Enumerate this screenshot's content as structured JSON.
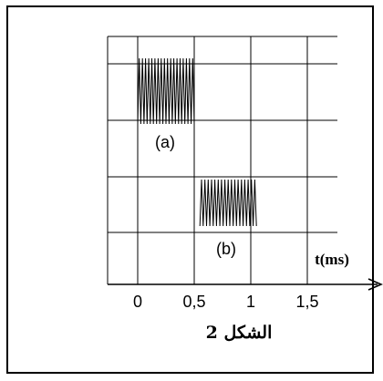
{
  "figure": {
    "caption": "الشكل 2",
    "axis_label": "t(ms)",
    "tick_labels": [
      "0",
      "0,5",
      "1",
      "1,5"
    ],
    "signal_labels": [
      "(a)",
      "(b)"
    ],
    "signals": [
      {
        "label": "(a)",
        "start_ms": 0,
        "end_ms": 0.5,
        "cycles": 18
      },
      {
        "label": "(b)",
        "start_ms": 0.55,
        "end_ms": 1.05,
        "cycles": 17
      }
    ],
    "colors": {
      "grid": "#000000",
      "signal": "#000000",
      "background": "#ffffff"
    }
  }
}
